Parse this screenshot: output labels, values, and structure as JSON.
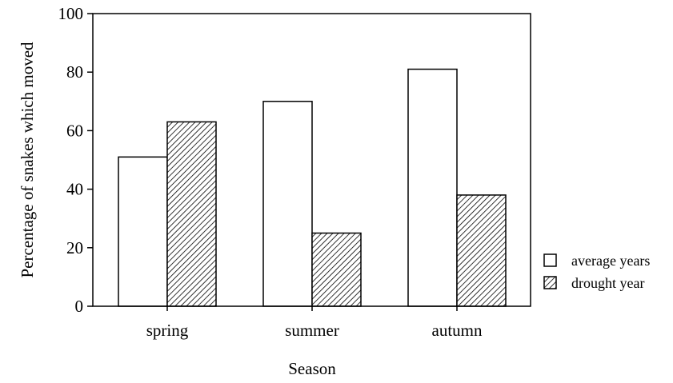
{
  "chart_data": {
    "type": "bar",
    "title": "",
    "xlabel": "Season",
    "ylabel": "Percentage of snakes which moved",
    "categories": [
      "spring",
      "summer",
      "autumn"
    ],
    "series": [
      {
        "name": "average years",
        "values": [
          51,
          70,
          81
        ],
        "pattern": "none",
        "fill": "#ffffff"
      },
      {
        "name": "drought year",
        "values": [
          63,
          25,
          38
        ],
        "pattern": "diagonal-hatch",
        "fill": "#ffffff"
      }
    ],
    "ylim": [
      0,
      100
    ],
    "yticks": [
      0,
      20,
      40,
      60,
      80,
      100
    ],
    "grid": false,
    "legend_position": "bottom-right outside"
  }
}
